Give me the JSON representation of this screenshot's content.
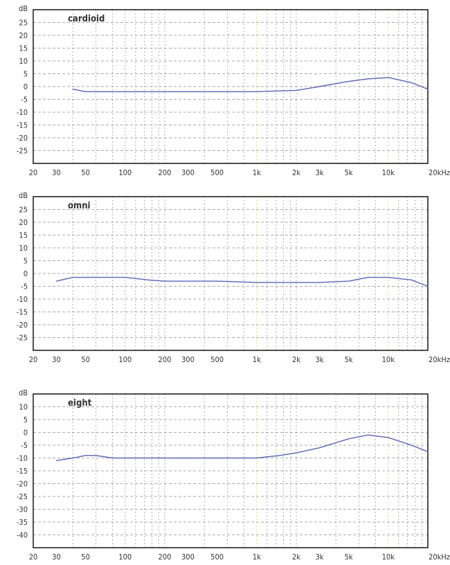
{
  "chart_data": [
    {
      "type": "line",
      "title": "cardioid",
      "yunit": "dB",
      "xunit": "Hz",
      "xscale": "log",
      "xlim": [
        20,
        20000
      ],
      "ylim": [
        -30,
        30
      ],
      "yticks": [
        25,
        20,
        15,
        10,
        5,
        0,
        -5,
        -10,
        -15,
        -20,
        -25
      ],
      "xticks": [
        {
          "value": 20,
          "label": "20"
        },
        {
          "value": 30,
          "label": "30"
        },
        {
          "value": 50,
          "label": "50"
        },
        {
          "value": 100,
          "label": "100"
        },
        {
          "value": 200,
          "label": "200"
        },
        {
          "value": 300,
          "label": "300"
        },
        {
          "value": 500,
          "label": "500"
        },
        {
          "value": 1000,
          "label": "1k"
        },
        {
          "value": 2000,
          "label": "2k"
        },
        {
          "value": 3000,
          "label": "3k"
        },
        {
          "value": 5000,
          "label": "5k"
        },
        {
          "value": 10000,
          "label": "10k"
        },
        {
          "value": 20000,
          "label": "20kHz"
        }
      ],
      "grid": true,
      "colors": {
        "line": "#5a64b4",
        "frame": "#222222"
      },
      "series": [
        {
          "x": [
            40,
            50,
            100,
            200,
            500,
            1000,
            2000,
            3000,
            5000,
            7000,
            10000,
            15000,
            20000
          ],
          "y": [
            -1,
            -2,
            -2,
            -2,
            -2,
            -2,
            -1.5,
            0,
            2,
            3,
            3.5,
            1.5,
            -1
          ]
        }
      ]
    },
    {
      "type": "line",
      "title": "omni",
      "yunit": "dB",
      "xunit": "Hz",
      "xscale": "log",
      "xlim": [
        20,
        20000
      ],
      "ylim": [
        -30,
        30
      ],
      "yticks": [
        25,
        20,
        15,
        10,
        5,
        0,
        -5,
        -10,
        -15,
        -20,
        -25
      ],
      "xticks": [
        {
          "value": 20,
          "label": "20"
        },
        {
          "value": 30,
          "label": "30"
        },
        {
          "value": 50,
          "label": "50"
        },
        {
          "value": 100,
          "label": "100"
        },
        {
          "value": 200,
          "label": "200"
        },
        {
          "value": 300,
          "label": "300"
        },
        {
          "value": 500,
          "label": "500"
        },
        {
          "value": 1000,
          "label": "1k"
        },
        {
          "value": 2000,
          "label": "2k"
        },
        {
          "value": 3000,
          "label": "3k"
        },
        {
          "value": 5000,
          "label": "5k"
        },
        {
          "value": 10000,
          "label": "10k"
        },
        {
          "value": 20000,
          "label": "20kHz"
        }
      ],
      "grid": true,
      "colors": {
        "line": "#5a64b4",
        "frame": "#222222"
      },
      "series": [
        {
          "x": [
            30,
            40,
            60,
            100,
            150,
            200,
            500,
            1000,
            2000,
            3000,
            5000,
            7000,
            10000,
            15000,
            20000
          ],
          "y": [
            -3,
            -1.5,
            -1.5,
            -1.5,
            -2.5,
            -3,
            -3,
            -3.5,
            -3.5,
            -3.5,
            -3,
            -1.5,
            -1.5,
            -2.5,
            -5
          ]
        }
      ]
    },
    {
      "type": "line",
      "title": "eight",
      "yunit": "dB",
      "xunit": "Hz",
      "xscale": "log",
      "xlim": [
        20,
        20000
      ],
      "ylim": [
        -45,
        15
      ],
      "yticks": [
        10,
        5,
        0,
        -5,
        -10,
        -15,
        -20,
        -25,
        -30,
        -35,
        -40
      ],
      "xticks": [
        {
          "value": 20,
          "label": "20"
        },
        {
          "value": 30,
          "label": "30"
        },
        {
          "value": 50,
          "label": "50"
        },
        {
          "value": 100,
          "label": "100"
        },
        {
          "value": 200,
          "label": "200"
        },
        {
          "value": 300,
          "label": "300"
        },
        {
          "value": 500,
          "label": "500"
        },
        {
          "value": 1000,
          "label": "1k"
        },
        {
          "value": 2000,
          "label": "2k"
        },
        {
          "value": 3000,
          "label": "3k"
        },
        {
          "value": 5000,
          "label": "5k"
        },
        {
          "value": 10000,
          "label": "10k"
        },
        {
          "value": 20000,
          "label": "20kHz"
        }
      ],
      "grid": true,
      "colors": {
        "line": "#5a64b4",
        "frame": "#222222"
      },
      "series": [
        {
          "x": [
            30,
            40,
            50,
            60,
            80,
            100,
            200,
            500,
            1000,
            1500,
            2000,
            3000,
            5000,
            7000,
            10000,
            15000,
            20000
          ],
          "y": [
            -11,
            -10,
            -9,
            -9,
            -10,
            -10,
            -10,
            -10,
            -10,
            -9,
            -8,
            -6,
            -2.5,
            -1,
            -2,
            -5,
            -7.5
          ]
        }
      ]
    }
  ]
}
